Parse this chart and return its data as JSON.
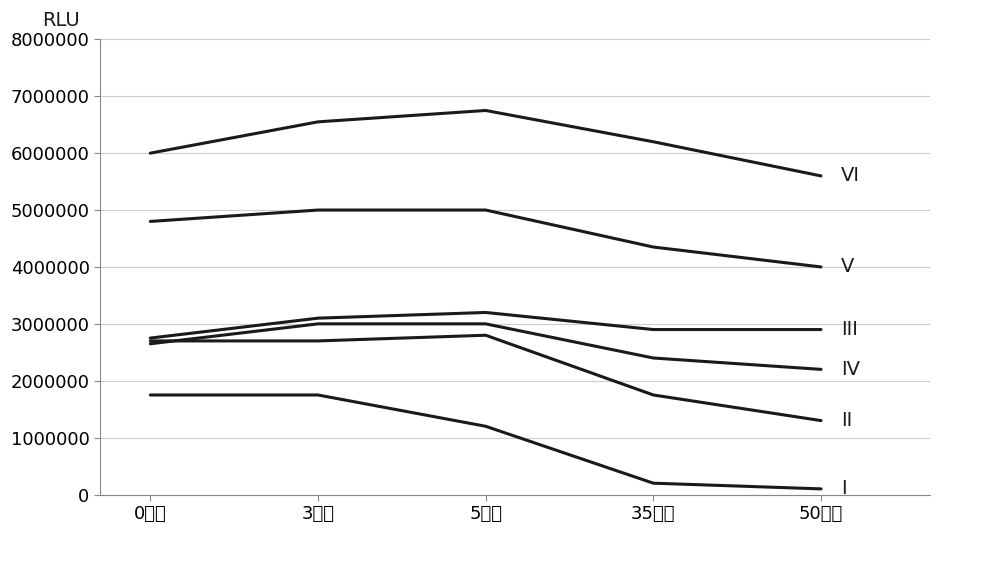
{
  "x_labels": [
    "0分钟",
    "3分钟",
    "5分钟",
    "35分钟",
    "50分钟"
  ],
  "series": {
    "I": [
      1750000,
      1750000,
      1200000,
      200000,
      100000
    ],
    "II": [
      2700000,
      2700000,
      2800000,
      1750000,
      1300000
    ],
    "III": [
      2750000,
      3100000,
      3200000,
      2900000,
      2900000
    ],
    "IV": [
      2650000,
      3000000,
      3000000,
      2400000,
      2200000
    ],
    "V": [
      4800000,
      5000000,
      5000000,
      4350000,
      4000000
    ],
    "VI": [
      6000000,
      6550000,
      6750000,
      6200000,
      5600000
    ]
  },
  "line_color": "#1a1a1a",
  "background_color": "#ffffff",
  "ylabel": "RLU",
  "ylim": [
    0,
    8000000
  ],
  "yticks": [
    0,
    1000000,
    2000000,
    3000000,
    4000000,
    5000000,
    6000000,
    7000000,
    8000000
  ],
  "ylabel_fontsize": 14,
  "tick_fontsize": 13,
  "label_fontsize": 14,
  "linewidth": 2.2,
  "grid_color": "#cccccc",
  "grid_linewidth": 0.8
}
